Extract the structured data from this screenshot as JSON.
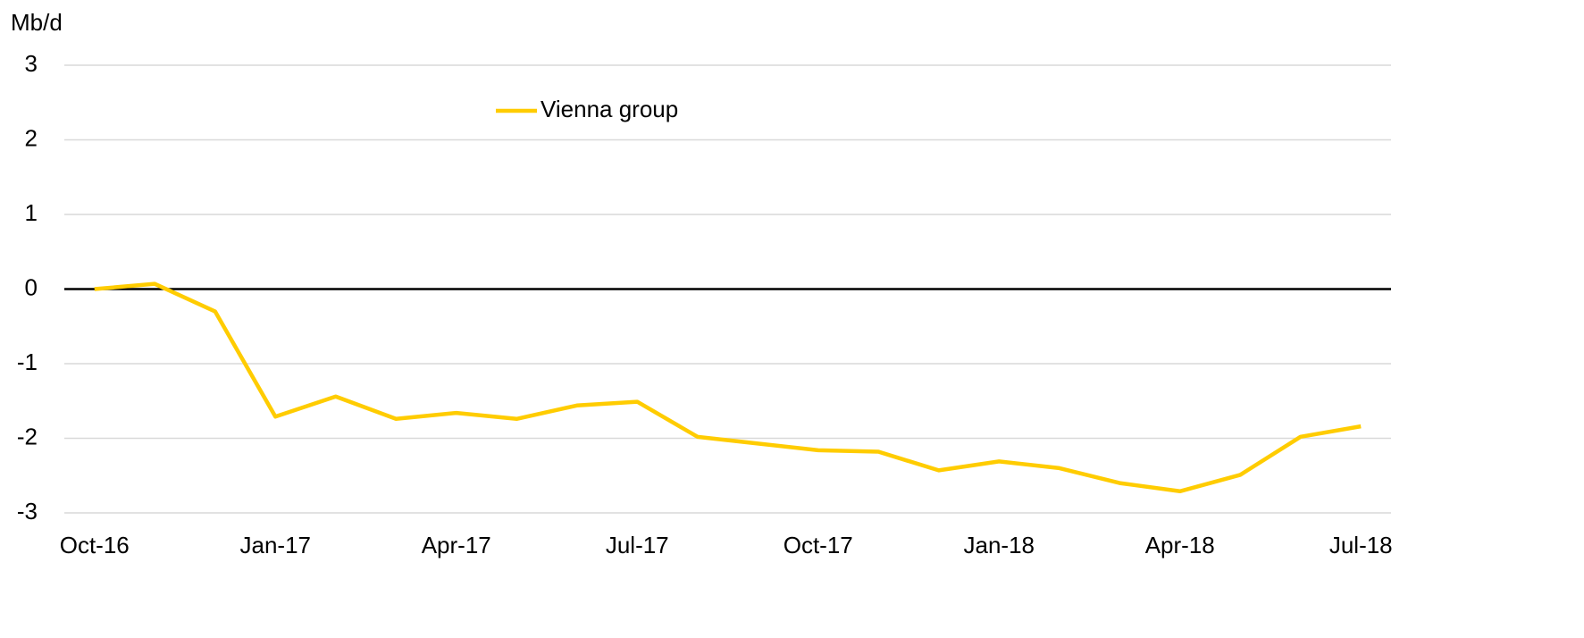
{
  "chart_data": {
    "type": "line",
    "y_axis_label": "Mb/d",
    "categories": [
      "Oct-16",
      null,
      null,
      "Jan-17",
      null,
      null,
      "Apr-17",
      null,
      null,
      "Jul-17",
      null,
      null,
      "Oct-17",
      null,
      null,
      "Jan-18",
      null,
      null,
      "Apr-18",
      null,
      null,
      "Jul-18"
    ],
    "series": [
      {
        "name": "Vienna group",
        "color": "#ffcc00",
        "values": [
          0,
          0.07,
          -0.3,
          -1.71,
          -1.44,
          -1.74,
          -1.66,
          -1.74,
          -1.56,
          -1.51,
          -1.98,
          -2.07,
          -2.16,
          -2.18,
          -2.43,
          -2.31,
          -2.4,
          -2.6,
          -2.71,
          -2.49,
          -1.98,
          -1.84
        ]
      }
    ],
    "ylim": [
      -3,
      3
    ],
    "yticks": [
      -3,
      -2,
      -1,
      0,
      1,
      2,
      3
    ],
    "grid": true
  }
}
